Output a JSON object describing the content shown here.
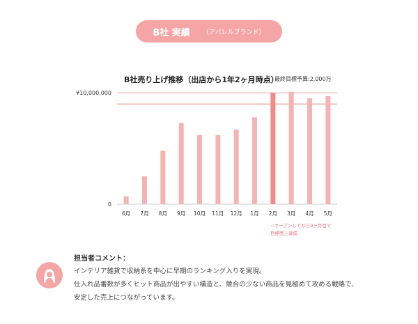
{
  "header": {
    "title": "B社 実績",
    "subtitle": "（アパレルブランド）"
  },
  "chart_data": {
    "type": "bar",
    "title": "B社売り上げ推移（出店から1年2ヶ月時点）",
    "budget_label": "最終目標予算:2,000万",
    "categories": [
      "6月",
      "7月",
      "8月",
      "9月",
      "10月",
      "11月",
      "12月",
      "1月",
      "2月",
      "3月",
      "4月",
      "5月"
    ],
    "values": [
      700000,
      2500000,
      4800000,
      7300000,
      6200000,
      6200000,
      6700000,
      7800000,
      10000000,
      10100000,
      9500000,
      9700000
    ],
    "highlight_index": 8,
    "ylim": [
      0,
      10200000
    ],
    "y_tick_labels": [
      {
        "value": 0,
        "label": "0"
      },
      {
        "value": 10000000,
        "label": "¥10,000,000"
      }
    ],
    "reference_line": 9000000,
    "colors": {
      "bar": "#f5b3b3",
      "highlight": "#f08a8a",
      "axis": "#cccccc",
      "line_top": "#e8a3a3",
      "line_ref": "#e8707a"
    },
    "annotation": [
      "☆オープンしてから9ヶ月目で",
      "目標売上達成"
    ]
  },
  "comment": {
    "heading": "担当者コメント：",
    "lines": [
      "インテリア雑貨で収納系を中心に早期のランキング入りを実現。",
      "仕入れ品番数が多くヒット商品が出やすい構造と、競合の少ない商品を見極めて攻める戦略で、",
      "安定した売上につながっています。"
    ],
    "avatar_icon": "person-icon"
  }
}
